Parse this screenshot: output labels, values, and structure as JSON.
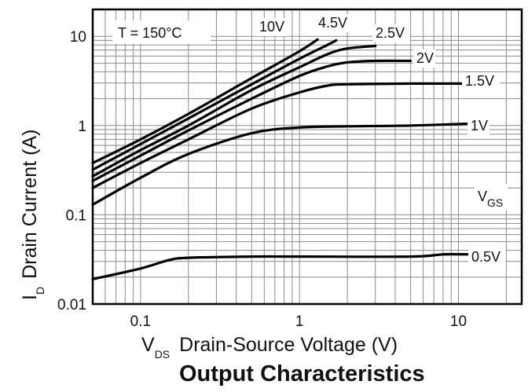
{
  "chart_data": {
    "type": "line",
    "title": "Output Characteristics",
    "xlabel": {
      "main": "V",
      "sub": "DS",
      "rest": "Drain-Source Voltage (V)"
    },
    "ylabel": {
      "main": "I",
      "sub": "D",
      "rest": "Drain Current (A)"
    },
    "x_scale": "log",
    "y_scale": "log",
    "xlim": [
      0.05,
      25
    ],
    "ylim": [
      0.01,
      20
    ],
    "x_ticks": [
      {
        "value": 0.1,
        "label": "0.1"
      },
      {
        "value": 1,
        "label": "1"
      },
      {
        "value": 10,
        "label": "10"
      }
    ],
    "y_ticks": [
      {
        "value": 0.01,
        "label": "0.01"
      },
      {
        "value": 0.1,
        "label": "0.1"
      },
      {
        "value": 1,
        "label": "1"
      },
      {
        "value": 10,
        "label": "10"
      }
    ],
    "grid": true,
    "annotations": {
      "temperature": "T = 150°C",
      "legend_title": {
        "main": "V",
        "sub": "GS"
      }
    },
    "series": [
      {
        "name": "10V",
        "x": [
          0.05,
          0.1,
          0.2,
          0.5,
          1.0,
          1.3
        ],
        "y": [
          0.38,
          0.7,
          1.35,
          3.4,
          6.8,
          9.2
        ]
      },
      {
        "name": "4.5V",
        "x": [
          0.05,
          0.1,
          0.2,
          0.5,
          1.0,
          1.5,
          1.7
        ],
        "y": [
          0.32,
          0.62,
          1.2,
          2.9,
          5.6,
          8.0,
          9.0
        ]
      },
      {
        "name": "2.5V",
        "x": [
          0.05,
          0.1,
          0.2,
          0.5,
          1.0,
          1.5,
          2.0,
          3.0
        ],
        "y": [
          0.27,
          0.53,
          1.0,
          2.5,
          4.5,
          6.3,
          7.3,
          7.8
        ]
      },
      {
        "name": "2V",
        "x": [
          0.05,
          0.1,
          0.2,
          0.5,
          1.0,
          1.5,
          2.0,
          3.0,
          5.0
        ],
        "y": [
          0.24,
          0.46,
          0.88,
          2.0,
          3.6,
          4.6,
          5.1,
          5.3,
          5.3
        ]
      },
      {
        "name": "1.5V",
        "x": [
          0.05,
          0.1,
          0.2,
          0.5,
          1.0,
          1.5,
          2.0,
          5.0,
          12.0
        ],
        "y": [
          0.2,
          0.38,
          0.7,
          1.55,
          2.35,
          2.8,
          2.9,
          2.95,
          2.95
        ]
      },
      {
        "name": "1V",
        "x": [
          0.05,
          0.1,
          0.2,
          0.5,
          1.0,
          2.0,
          5.0,
          12.0
        ],
        "y": [
          0.13,
          0.26,
          0.48,
          0.82,
          0.95,
          0.98,
          1.0,
          1.05
        ]
      },
      {
        "name": "0.5V",
        "x": [
          0.05,
          0.1,
          0.15,
          0.2,
          0.5,
          1.0,
          5.0,
          8.0,
          12.0
        ],
        "y": [
          0.019,
          0.025,
          0.031,
          0.033,
          0.034,
          0.034,
          0.034,
          0.036,
          0.036
        ]
      }
    ]
  }
}
